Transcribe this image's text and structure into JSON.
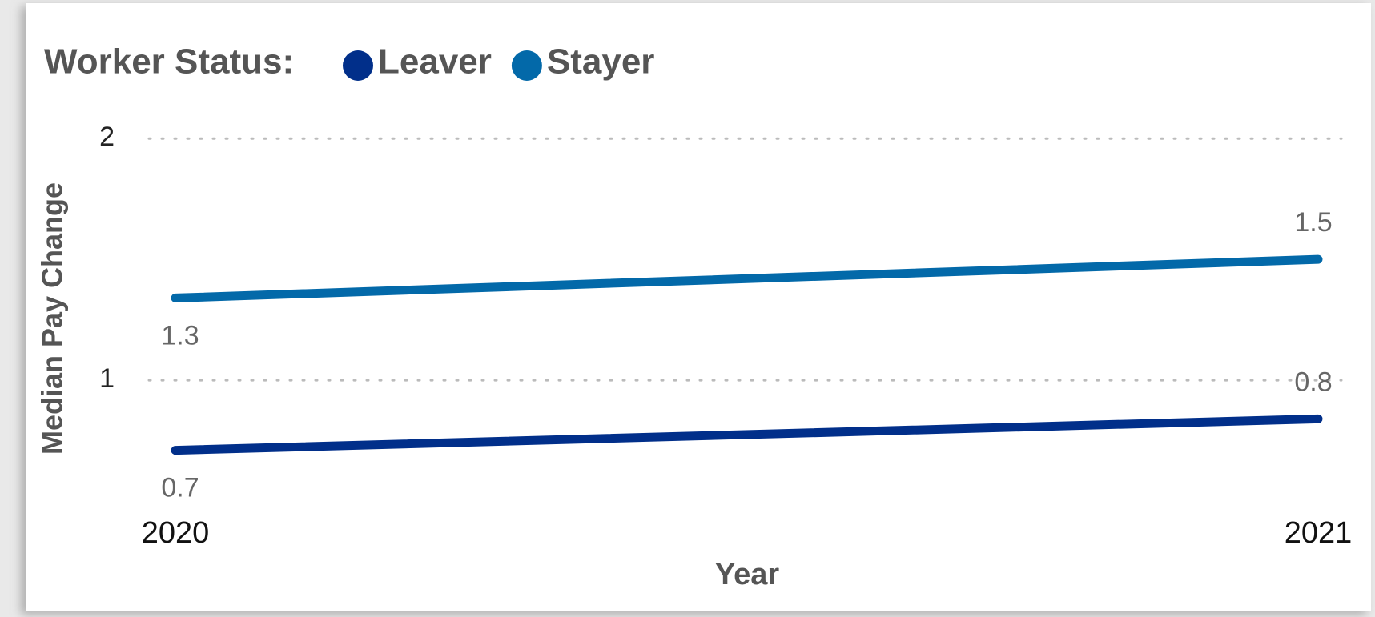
{
  "chart_data": {
    "type": "line",
    "legend_title": "Worker Status:",
    "x_label": "Year",
    "y_label": "Median Pay Change",
    "categories": [
      "2020",
      "2021"
    ],
    "series": [
      {
        "name": "Leaver",
        "color": "#012f8a",
        "values": [
          0.71,
          0.84
        ],
        "value_labels": [
          "0.7",
          "0.8"
        ]
      },
      {
        "name": "Stayer",
        "color": "#0369a9",
        "values": [
          1.34,
          1.5
        ],
        "value_labels": [
          "1.3",
          "1.5"
        ]
      }
    ],
    "ylim": [
      0.5,
      2.1
    ],
    "yticks": [
      1,
      2
    ],
    "grid": true,
    "legend": "top-left"
  }
}
